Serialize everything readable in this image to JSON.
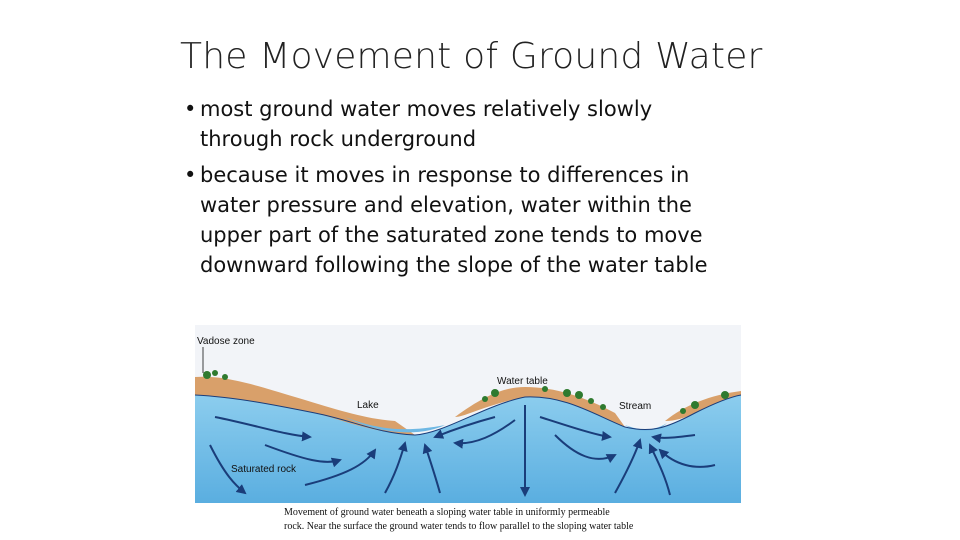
{
  "slide": {
    "title": "The Movement of Ground Water",
    "bullets": [
      {
        "marker": "•",
        "lines": [
          "most ground water moves relatively slowly",
          "through rock underground"
        ]
      },
      {
        "marker": "•",
        "lines": [
          "because it moves in response to differences in",
          "water pressure and elevation, water within the",
          "upper part of the saturated zone tends to move",
          "downward following the slope of the water table"
        ]
      }
    ]
  },
  "figure": {
    "labels": {
      "vadose_zone": "Vadose zone",
      "water_table": "Water table",
      "lake": "Lake",
      "stream": "Stream",
      "saturated_rock": "Saturated rock"
    },
    "colors": {
      "water": "#7ec4ea",
      "water_deep": "#5aaee0",
      "soil": "#d9a06a",
      "soil_dark": "#b97a4a",
      "arrow": "#1a3d7a",
      "tree": "#2f7a2f",
      "sky": "#f2f4f8"
    },
    "caption_lines": [
      "Movement of ground water beneath a sloping water table in uniformly permeable",
      "rock. Near the surface the ground water tends to flow parallel to the sloping water table"
    ]
  }
}
